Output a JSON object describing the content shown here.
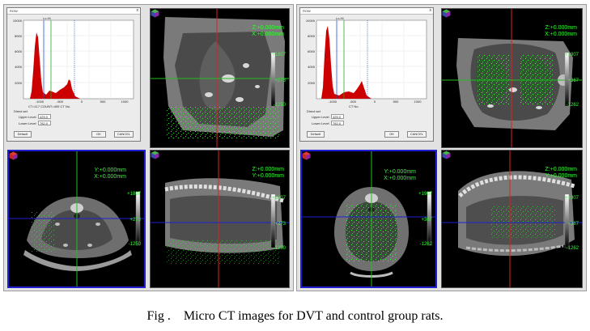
{
  "caption": "Fig .    Micro CT images for DVT and control group rats.",
  "colors": {
    "crosshair_red": "#e02020",
    "crosshair_green": "#20c020",
    "crosshair_blue": "#2020d0",
    "overlay_green": "#33ff33",
    "histogram_red": "#cc0000"
  },
  "icons": [
    "orientation-cube-icon",
    "close-icon"
  ],
  "groups": [
    {
      "name": "dvt-group",
      "dialog": {
        "title": "ROW",
        "close": "x",
        "histogram": {
          "peak_label": "Lo-Hi",
          "y_ticks": [
            "10000",
            "8000",
            "6000",
            "4000",
            "2000"
          ],
          "x_ticks": [
            "-1000",
            "-500",
            "0",
            "500",
            "1000"
          ],
          "bottom_label": "CT=117  COUNT=409  CT No."
        },
        "section_label": "Direct set",
        "upper_label": "Upper Level",
        "upper_value": "425.0",
        "lower_label": "Lower Level",
        "lower_value": "782.0",
        "default_btn": "Default",
        "ok_btn": "OK",
        "cancel_btn": "CANCEL"
      },
      "views": {
        "axial_top": {
          "coord1": "Z:+0.000mm",
          "coord2": "X:+0.000mm",
          "scale": [
            "+1807",
            "+273",
            "-1250"
          ]
        },
        "coronal": {
          "coord1": "Y:+0.000mm",
          "coord2": "X:+0.000mm",
          "scale": [
            "+1807",
            "+273",
            "-1250"
          ]
        },
        "sagittal": {
          "coord1": "Z:+0.000mm",
          "coord2": "Y:+0.000mm",
          "scale": [
            "+1807",
            "+273",
            "-1250"
          ]
        }
      }
    },
    {
      "name": "control-group",
      "dialog": {
        "title": "ROW",
        "close": "x",
        "histogram": {
          "peak_label": "Lo-Hi",
          "y_ticks": [
            "10000",
            "8000",
            "6000",
            "4000",
            "2000"
          ],
          "x_ticks": [
            "-1000",
            "-500",
            "0",
            "500",
            "1000"
          ],
          "bottom_label": "CT No."
        },
        "section_label": "Direct set",
        "upper_label": "Upper Level",
        "upper_value": "425.0",
        "lower_label": "Lower Level",
        "lower_value": "782.0",
        "default_btn": "Default",
        "ok_btn": "OK",
        "cancel_btn": "CANCEL"
      },
      "views": {
        "axial_top": {
          "coord1": "Z:+0.000mm",
          "coord2": "X:+0.000mm",
          "scale": [
            "+1907",
            "+367",
            "-1262"
          ]
        },
        "coronal": {
          "coord1": "Y:+0.000mm",
          "coord2": "X:+0.000mm",
          "scale": [
            "+1907",
            "+367",
            "-1262"
          ]
        },
        "sagittal": {
          "coord1": "Z:+0.000mm",
          "coord2": "Y:+0.000mm",
          "scale": [
            "+1907",
            "+367",
            "-1262"
          ]
        }
      }
    }
  ]
}
